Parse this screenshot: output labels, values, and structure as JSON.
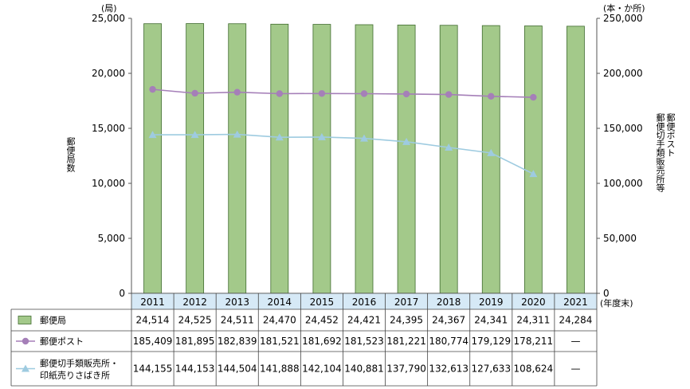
{
  "chart_data": {
    "type": "bar",
    "categories": [
      "2011",
      "2012",
      "2013",
      "2014",
      "2015",
      "2016",
      "2017",
      "2018",
      "2019",
      "2020",
      "2021"
    ],
    "x_unit": "(年度末)",
    "y_left": {
      "unit": "(局)",
      "label": "郵便局数",
      "range": [
        0,
        25000
      ],
      "ticks": [
        "0",
        "5,000",
        "10,000",
        "15,000",
        "20,000",
        "25,000"
      ]
    },
    "y_right": {
      "unit": "(本・か所)",
      "label": [
        "郵便ポスト",
        "郵便切手類販売所等"
      ],
      "range": [
        0,
        250000
      ],
      "ticks": [
        "0",
        "50,000",
        "100,000",
        "150,000",
        "200,000",
        "250,000"
      ]
    },
    "series": [
      {
        "name": "郵便局",
        "kind": "bar",
        "axis": "left",
        "color": "#a3c98a",
        "values": [
          24514,
          24525,
          24511,
          24470,
          24452,
          24421,
          24395,
          24367,
          24341,
          24311,
          24284
        ],
        "labels": [
          "24,514",
          "24,525",
          "24,511",
          "24,470",
          "24,452",
          "24,421",
          "24,395",
          "24,367",
          "24,341",
          "24,311",
          "24,284"
        ]
      },
      {
        "name": "郵便ポスト",
        "kind": "line",
        "axis": "right",
        "color": "#a57fb8",
        "values": [
          185409,
          181895,
          182839,
          181521,
          181692,
          181523,
          181221,
          180774,
          179129,
          178211,
          null
        ],
        "labels": [
          "185,409",
          "181,895",
          "182,839",
          "181,521",
          "181,692",
          "181,523",
          "181,221",
          "180,774",
          "179,129",
          "178,211",
          "—"
        ]
      },
      {
        "name": "郵便切手類販売所・印紙売りさばき所",
        "name_lines": [
          "郵便切手類販売所・",
          "印紙売りさばき所"
        ],
        "kind": "line",
        "axis": "right",
        "color": "#9ecbe0",
        "values": [
          144155,
          144153,
          144504,
          141888,
          142104,
          140881,
          137790,
          132613,
          127633,
          108624,
          null
        ],
        "labels": [
          "144,155",
          "144,153",
          "144,504",
          "141,888",
          "142,104",
          "140,881",
          "137,790",
          "132,613",
          "127,633",
          "108,624",
          "—"
        ]
      }
    ],
    "grid": false,
    "legend": "table-below"
  }
}
